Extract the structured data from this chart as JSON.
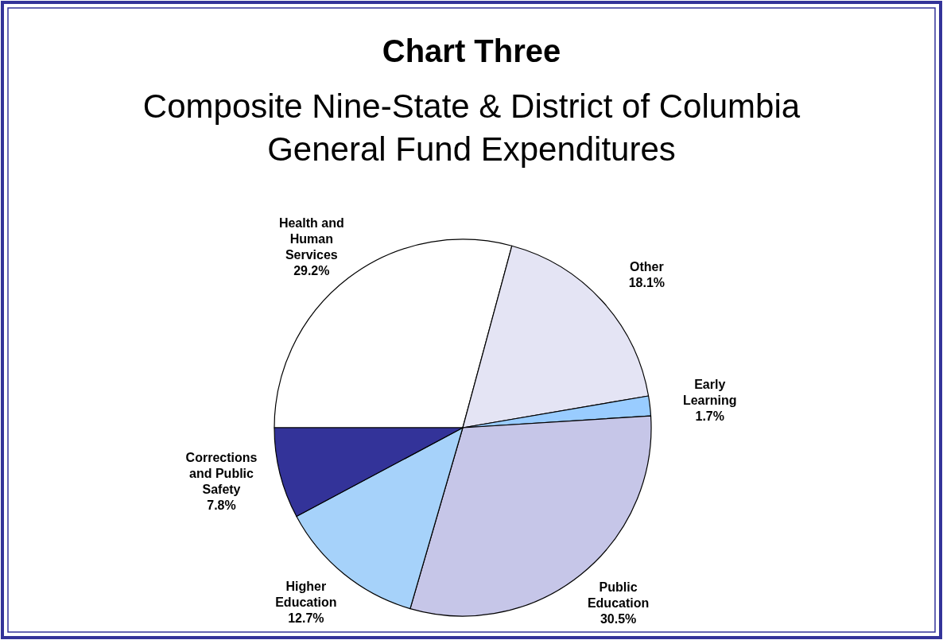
{
  "chart_data": {
    "type": "pie",
    "title": "Chart Three",
    "subtitle": "Composite Nine-State & District of Columbia General Fund Expenditures",
    "categories": [
      "Health and Human Services",
      "Other",
      "Early Learning",
      "Public Education",
      "Higher Education",
      "Corrections and Public Safety"
    ],
    "values": [
      29.2,
      18.1,
      1.7,
      30.5,
      12.7,
      7.8
    ],
    "value_labels": [
      "29.2%",
      "18.1%",
      "1.7%",
      "30.5%",
      "12.7%",
      "7.8%"
    ],
    "colors": [
      "#ffffff",
      "#e4e4f4",
      "#99ccff",
      "#c6c6e8",
      "#a6d2fa",
      "#333399"
    ]
  }
}
